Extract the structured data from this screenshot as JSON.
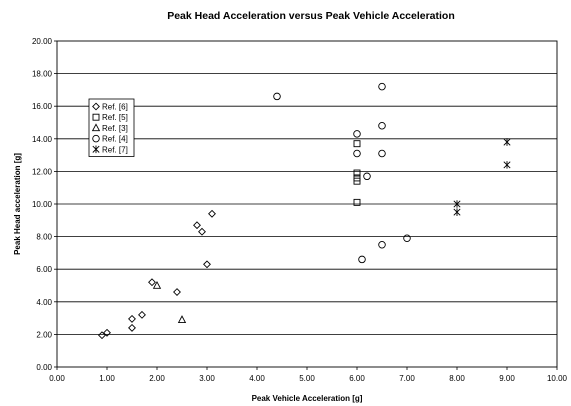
{
  "chart_data": {
    "type": "scatter",
    "title": "Peak Head Acceleration versus Peak Vehicle Acceleration",
    "xlabel": "Peak Vehicle Acceleration [g]",
    "ylabel": "Peak Head acceleration [g]",
    "xlim": [
      0,
      10
    ],
    "ylim": [
      0,
      20
    ],
    "x_ticks": [
      "0.00",
      "1.00",
      "2.00",
      "3.00",
      "4.00",
      "5.00",
      "6.00",
      "7.00",
      "8.00",
      "9.00",
      "10.00"
    ],
    "y_ticks": [
      "0.00",
      "2.00",
      "4.00",
      "6.00",
      "8.00",
      "10.00",
      "12.00",
      "14.00",
      "16.00",
      "18.00",
      "20.00"
    ],
    "grid": "horizontal major gridlines",
    "legend_position": "left, inside plot area",
    "series": [
      {
        "name": "Ref. [6]",
        "marker": "diamond",
        "points": [
          [
            0.9,
            1.95
          ],
          [
            1.0,
            2.1
          ],
          [
            1.5,
            2.4
          ],
          [
            1.5,
            2.95
          ],
          [
            1.7,
            3.2
          ],
          [
            1.9,
            5.2
          ],
          [
            2.4,
            4.6
          ],
          [
            2.8,
            8.7
          ],
          [
            2.9,
            8.3
          ],
          [
            3.0,
            6.3
          ],
          [
            3.1,
            9.4
          ]
        ]
      },
      {
        "name": "Ref. [5]",
        "marker": "square",
        "points": [
          [
            6.0,
            13.7
          ],
          [
            6.0,
            11.9
          ],
          [
            6.0,
            11.6
          ],
          [
            6.0,
            11.4
          ],
          [
            6.0,
            10.1
          ]
        ]
      },
      {
        "name": "Ref. [3]",
        "marker": "triangle",
        "points": [
          [
            2.0,
            5.0
          ],
          [
            2.5,
            2.9
          ]
        ]
      },
      {
        "name": "Ref. [4]",
        "marker": "circle",
        "points": [
          [
            4.4,
            16.6
          ],
          [
            6.0,
            14.3
          ],
          [
            6.0,
            13.1
          ],
          [
            6.2,
            11.7
          ],
          [
            6.5,
            17.2
          ],
          [
            6.5,
            14.8
          ],
          [
            6.5,
            13.1
          ],
          [
            6.1,
            6.6
          ],
          [
            6.5,
            7.5
          ],
          [
            7.0,
            7.9
          ]
        ]
      },
      {
        "name": "Ref. [7]",
        "marker": "star",
        "points": [
          [
            8.0,
            10.0
          ],
          [
            8.0,
            9.5
          ],
          [
            9.0,
            13.8
          ],
          [
            9.0,
            12.4
          ]
        ]
      }
    ]
  }
}
